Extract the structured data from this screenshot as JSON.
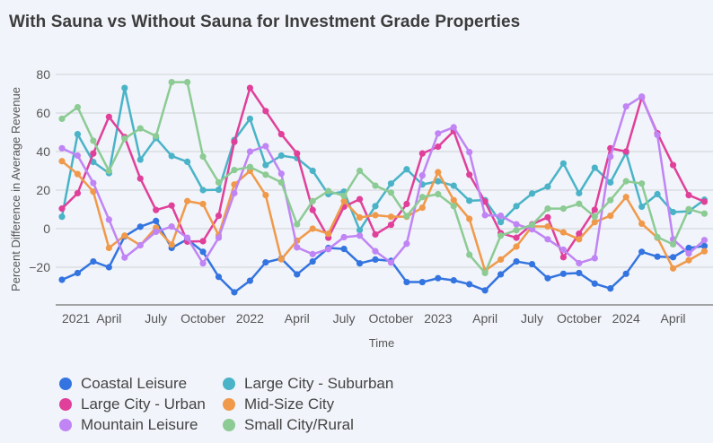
{
  "chart_data": {
    "type": "line",
    "title": "With Sauna vs Without Sauna for Investment Grade Properties",
    "xlabel": "Time",
    "ylabel": "Percent Difference in Average Revenue",
    "ylim": [
      -39.5,
      86
    ],
    "yticks": [
      -20,
      0,
      20,
      40,
      60,
      80
    ],
    "grid": true,
    "legend_position": "bottom",
    "x": [
      "2021-01",
      "2021-02",
      "2021-03",
      "2021-04",
      "2021-05",
      "2021-06",
      "2021-07",
      "2021-08",
      "2021-09",
      "2021-10",
      "2021-11",
      "2021-12",
      "2022-01",
      "2022-02",
      "2022-03",
      "2022-04",
      "2022-05",
      "2022-06",
      "2022-07",
      "2022-08",
      "2022-09",
      "2022-10",
      "2022-11",
      "2022-12",
      "2023-01",
      "2023-02",
      "2023-03",
      "2023-04",
      "2023-05",
      "2023-06",
      "2023-07",
      "2023-08",
      "2023-09",
      "2023-10",
      "2023-11",
      "2023-12",
      "2024-01",
      "2024-02",
      "2024-03",
      "2024-04",
      "2024-05",
      "2024-06"
    ],
    "xticks": [
      {
        "index": 0,
        "label": "2021"
      },
      {
        "index": 3,
        "label": "April"
      },
      {
        "index": 6,
        "label": "July"
      },
      {
        "index": 9,
        "label": "October"
      },
      {
        "index": 12,
        "label": "2022"
      },
      {
        "index": 15,
        "label": "April"
      },
      {
        "index": 18,
        "label": "July"
      },
      {
        "index": 21,
        "label": "October"
      },
      {
        "index": 24,
        "label": "2023"
      },
      {
        "index": 27,
        "label": "April"
      },
      {
        "index": 30,
        "label": "July"
      },
      {
        "index": 33,
        "label": "October"
      },
      {
        "index": 36,
        "label": "2024"
      },
      {
        "index": 39,
        "label": "April"
      }
    ],
    "series": [
      {
        "name": "Coastal Leisure",
        "color": "#3474e0",
        "values": [
          -26.5,
          -23,
          -17,
          -20,
          -4,
          1,
          4,
          -10,
          -5.5,
          -12,
          -25,
          -33,
          -27,
          -17.5,
          -15.5,
          -23.7,
          -17,
          -10,
          -10.5,
          -18,
          -16,
          -16.7,
          -27.7,
          -27.7,
          -25.7,
          -26.8,
          -28.8,
          -32,
          -23.7,
          -17,
          -18.4,
          -25.7,
          -23.4,
          -23,
          -28.5,
          -31,
          -23.4,
          -12,
          -14.5,
          -14.8,
          -10,
          -9
        ]
      },
      {
        "name": "Large City - Suburban",
        "color": "#4ab3c7",
        "values": [
          6.2,
          49,
          34.6,
          28.8,
          73,
          35.8,
          47,
          37.7,
          34.7,
          20,
          20.2,
          46,
          57,
          33,
          37.9,
          36.6,
          30,
          17.9,
          19.2,
          -0.8,
          11.7,
          23.4,
          30.8,
          22.9,
          24.6,
          22.3,
          14.5,
          14.8,
          3.4,
          11.7,
          18.2,
          21.8,
          33.8,
          18.4,
          31.6,
          24,
          39.4,
          11.4,
          17.9,
          8.6,
          9,
          15
        ]
      },
      {
        "name": "Large City - Urban",
        "color": "#e0409a",
        "values": [
          10.4,
          18.4,
          39,
          58,
          47.5,
          26,
          9.7,
          12,
          -6.7,
          -6.5,
          6.7,
          45,
          73,
          61,
          49,
          39,
          9.7,
          -4.7,
          11.4,
          15.3,
          -3,
          2,
          12.8,
          39,
          42.5,
          50.6,
          28,
          14,
          -2.3,
          -4.7,
          2.3,
          5.9,
          -14.8,
          -2.6,
          9.8,
          41.7,
          40,
          68,
          49.5,
          33,
          17.4,
          14
        ]
      },
      {
        "name": "Mid-Size City",
        "color": "#f0994a",
        "values": [
          35,
          28.3,
          19.2,
          -10,
          -3.6,
          -8.6,
          0.5,
          -8.3,
          14.3,
          12.8,
          -3.4,
          22.9,
          30,
          17.4,
          -15.9,
          -6.2,
          0,
          -2.6,
          14.3,
          5.8,
          7,
          6.2,
          6.2,
          10.9,
          29.3,
          14.8,
          5.1,
          -21.8,
          -16,
          -9.3,
          1.2,
          1.1,
          -1.9,
          -5.5,
          3.4,
          6.7,
          16.4,
          2.6,
          -4.7,
          -20.6,
          -16.4,
          -11.7
        ]
      },
      {
        "name": "Mountain Leisure",
        "color": "#c084f5",
        "values": [
          41.7,
          37.9,
          23.7,
          4.7,
          -15,
          -8.6,
          -1.6,
          1.1,
          -4.7,
          -18,
          -4.7,
          18.4,
          40,
          42.8,
          28.5,
          -9.7,
          -13.2,
          -10.6,
          -4.4,
          -3.6,
          -11.7,
          -17.6,
          -7.8,
          27.6,
          49.4,
          52.6,
          39.7,
          7,
          6.7,
          2.3,
          -0.3,
          -5.5,
          -10.9,
          -17.9,
          -15.3,
          37.4,
          63.4,
          68.5,
          48.6,
          -5.5,
          -12.9,
          -5.9
        ]
      },
      {
        "name": "Small City/Rural",
        "color": "#8ccb94",
        "values": [
          57,
          63,
          45.6,
          30,
          46.7,
          52,
          48,
          76,
          76,
          37.4,
          24,
          30.4,
          32,
          28,
          24,
          2.3,
          14.3,
          19.5,
          17,
          30,
          22.3,
          18.7,
          6.5,
          16.4,
          17.9,
          11.7,
          -13.5,
          -23,
          -3.6,
          -0.8,
          2,
          10.4,
          10.4,
          12.9,
          6.2,
          14.8,
          24.6,
          23.4,
          -4.4,
          -8.1,
          10.1,
          7.8
        ]
      }
    ],
    "legend_order": [
      0,
      1,
      2,
      3,
      4,
      5
    ]
  }
}
